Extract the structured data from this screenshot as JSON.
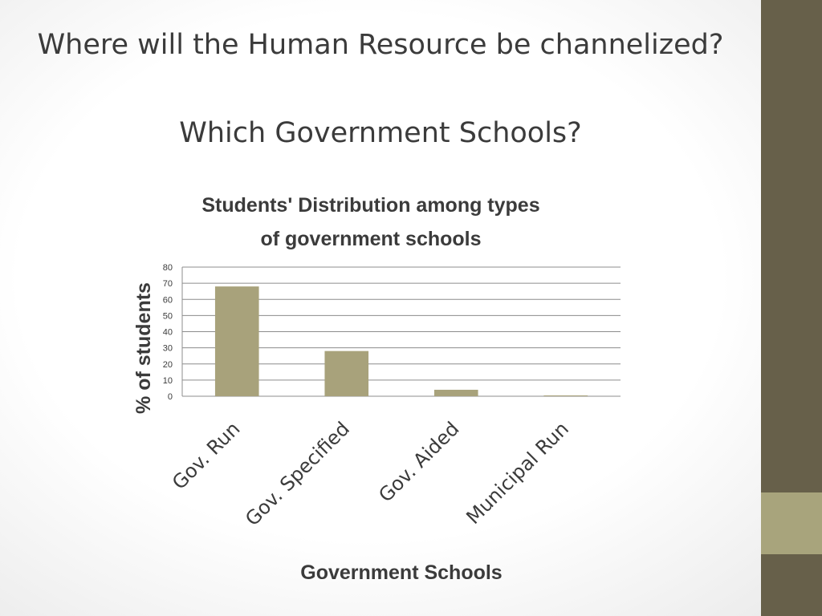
{
  "slide": {
    "title": "Where will the Human Resource be channelized?",
    "subtitle": "Which Government Schools?"
  },
  "colors": {
    "sidebar": "#67604a",
    "sidebar_accent": "#a8a47c",
    "bar": "#a8a27b",
    "text": "#3b3b3b",
    "gridline": "#8c8c8c"
  },
  "chart_data": {
    "type": "bar",
    "title_lines": [
      "Students' Distribution among types",
      "of government schools"
    ],
    "xlabel": "Government Schools",
    "ylabel": "% of students",
    "categories": [
      "Gov. Run",
      "Gov. Specified",
      "Gov. Aided",
      "Municipal Run"
    ],
    "values": [
      68,
      28,
      4,
      0.5
    ],
    "ylim": [
      0,
      80
    ],
    "yticks": [
      "0",
      "10",
      "20",
      "30",
      "40",
      "50",
      "60",
      "70",
      "80"
    ],
    "grid": true,
    "legend": "none"
  }
}
